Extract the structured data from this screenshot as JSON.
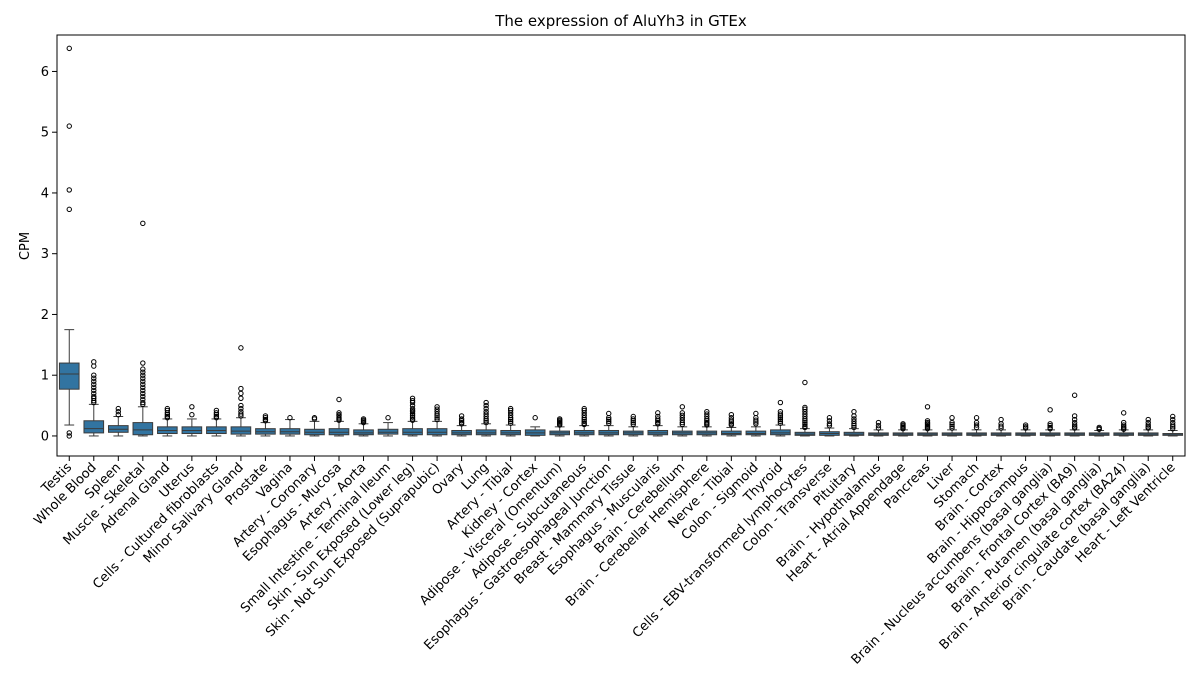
{
  "chart_data": {
    "type": "box",
    "title": "The expression of AluYh3 in GTEx",
    "xlabel": "",
    "ylabel": "CPM",
    "ylim": [
      -0.33,
      6.6
    ],
    "yticks": [
      0,
      1,
      2,
      3,
      4,
      5,
      6
    ],
    "grid": false,
    "box_color": "#3274a1",
    "categories": [
      "Testis",
      "Whole Blood",
      "Spleen",
      "Muscle - Skeletal",
      "Adrenal Gland",
      "Uterus",
      "Cells - Cultured fibroblasts",
      "Minor Salivary Gland",
      "Prostate",
      "Vagina",
      "Artery - Coronary",
      "Esophagus - Mucosa",
      "Artery - Aorta",
      "Small Intestine - Terminal Ileum",
      "Skin - Sun Exposed (Lower leg)",
      "Skin - Not Sun Exposed (Suprapubic)",
      "Ovary",
      "Lung",
      "Artery - Tibial",
      "Kidney - Cortex",
      "Adipose - Visceral (Omentum)",
      "Adipose - Subcutaneous",
      "Esophagus - Gastroesophageal Junction",
      "Breast - Mammary Tissue",
      "Esophagus - Muscularis",
      "Brain - Cerebellum",
      "Brain - Cerebellar Hemisphere",
      "Nerve - Tibial",
      "Colon - Sigmoid",
      "Thyroid",
      "Cells - EBV-transformed lymphocytes",
      "Colon - Transverse",
      "Pituitary",
      "Brain - Hypothalamus",
      "Heart - Atrial Appendage",
      "Pancreas",
      "Liver",
      "Stomach",
      "Brain - Cortex",
      "Brain - Hippocampus",
      "Brain - Nucleus accumbens (basal ganglia)",
      "Brain - Frontal Cortex (BA9)",
      "Brain - Putamen (basal ganglia)",
      "Brain - Anterior cingulate cortex (BA24)",
      "Brain - Caudate (basal ganglia)",
      "Heart - Left Ventricle"
    ],
    "boxes": [
      {
        "q1": 0.77,
        "median": 1.02,
        "q3": 1.2,
        "whisker_low": 0.18,
        "whisker_high": 1.75,
        "outliers": [
          6.38,
          5.1,
          4.05,
          3.73,
          0.05,
          0.0
        ]
      },
      {
        "q1": 0.05,
        "median": 0.12,
        "q3": 0.25,
        "whisker_low": 0.0,
        "whisker_high": 0.52,
        "outliers": [
          1.22,
          1.15,
          1.0,
          0.95,
          0.9,
          0.85,
          0.8,
          0.75,
          0.7,
          0.65,
          0.62,
          0.58,
          0.55
        ]
      },
      {
        "q1": 0.06,
        "median": 0.11,
        "q3": 0.17,
        "whisker_low": 0.0,
        "whisker_high": 0.32,
        "outliers": [
          0.45,
          0.4,
          0.35
        ]
      },
      {
        "q1": 0.02,
        "median": 0.1,
        "q3": 0.22,
        "whisker_low": 0.0,
        "whisker_high": 0.48,
        "outliers": [
          3.5,
          1.2,
          1.1,
          1.05,
          1.0,
          0.95,
          0.9,
          0.85,
          0.8,
          0.75,
          0.7,
          0.65,
          0.6,
          0.55,
          0.52
        ]
      },
      {
        "q1": 0.04,
        "median": 0.09,
        "q3": 0.15,
        "whisker_low": 0.0,
        "whisker_high": 0.28,
        "outliers": [
          0.45,
          0.42,
          0.38,
          0.35,
          0.32,
          0.3
        ]
      },
      {
        "q1": 0.04,
        "median": 0.09,
        "q3": 0.15,
        "whisker_low": 0.0,
        "whisker_high": 0.28,
        "outliers": [
          0.48,
          0.35
        ]
      },
      {
        "q1": 0.04,
        "median": 0.09,
        "q3": 0.15,
        "whisker_low": 0.0,
        "whisker_high": 0.28,
        "outliers": [
          0.42,
          0.38,
          0.35,
          0.32,
          0.3
        ]
      },
      {
        "q1": 0.03,
        "median": 0.08,
        "q3": 0.15,
        "whisker_low": 0.0,
        "whisker_high": 0.3,
        "outliers": [
          1.45,
          0.78,
          0.7,
          0.62,
          0.5,
          0.45,
          0.4,
          0.36,
          0.33
        ]
      },
      {
        "q1": 0.03,
        "median": 0.07,
        "q3": 0.12,
        "whisker_low": 0.0,
        "whisker_high": 0.22,
        "outliers": [
          0.33,
          0.3,
          0.27,
          0.25
        ]
      },
      {
        "q1": 0.03,
        "median": 0.07,
        "q3": 0.12,
        "whisker_low": 0.0,
        "whisker_high": 0.27,
        "outliers": [
          0.3
        ]
      },
      {
        "q1": 0.02,
        "median": 0.06,
        "q3": 0.11,
        "whisker_low": 0.0,
        "whisker_high": 0.24,
        "outliers": [
          0.3,
          0.28
        ]
      },
      {
        "q1": 0.02,
        "median": 0.06,
        "q3": 0.12,
        "whisker_low": 0.0,
        "whisker_high": 0.24,
        "outliers": [
          0.6,
          0.38,
          0.35,
          0.33,
          0.3,
          0.28,
          0.26
        ]
      },
      {
        "q1": 0.02,
        "median": 0.05,
        "q3": 0.1,
        "whisker_low": 0.0,
        "whisker_high": 0.2,
        "outliers": [
          0.28,
          0.26,
          0.24,
          0.22
        ]
      },
      {
        "q1": 0.03,
        "median": 0.06,
        "q3": 0.11,
        "whisker_low": 0.0,
        "whisker_high": 0.22,
        "outliers": [
          0.3
        ]
      },
      {
        "q1": 0.02,
        "median": 0.06,
        "q3": 0.12,
        "whisker_low": 0.0,
        "whisker_high": 0.24,
        "outliers": [
          0.62,
          0.58,
          0.55,
          0.5,
          0.45,
          0.42,
          0.4,
          0.37,
          0.34,
          0.31,
          0.28,
          0.26
        ]
      },
      {
        "q1": 0.02,
        "median": 0.06,
        "q3": 0.12,
        "whisker_low": 0.0,
        "whisker_high": 0.24,
        "outliers": [
          0.48,
          0.44,
          0.4,
          0.36,
          0.33,
          0.3,
          0.27
        ]
      },
      {
        "q1": 0.02,
        "median": 0.05,
        "q3": 0.09,
        "whisker_low": 0.0,
        "whisker_high": 0.17,
        "outliers": [
          0.33,
          0.28,
          0.25,
          0.22,
          0.2
        ]
      },
      {
        "q1": 0.02,
        "median": 0.05,
        "q3": 0.1,
        "whisker_low": 0.0,
        "whisker_high": 0.2,
        "outliers": [
          0.55,
          0.5,
          0.45,
          0.4,
          0.36,
          0.32,
          0.28,
          0.25,
          0.22
        ]
      },
      {
        "q1": 0.02,
        "median": 0.05,
        "q3": 0.09,
        "whisker_low": 0.0,
        "whisker_high": 0.18,
        "outliers": [
          0.45,
          0.42,
          0.38,
          0.34,
          0.3,
          0.27,
          0.24,
          0.21
        ]
      },
      {
        "q1": 0.01,
        "median": 0.05,
        "q3": 0.1,
        "whisker_low": 0.0,
        "whisker_high": 0.15,
        "outliers": [
          0.3
        ]
      },
      {
        "q1": 0.02,
        "median": 0.05,
        "q3": 0.08,
        "whisker_low": 0.0,
        "whisker_high": 0.15,
        "outliers": [
          0.28,
          0.26,
          0.24,
          0.22,
          0.2,
          0.18
        ]
      },
      {
        "q1": 0.02,
        "median": 0.05,
        "q3": 0.09,
        "whisker_low": 0.0,
        "whisker_high": 0.17,
        "outliers": [
          0.45,
          0.42,
          0.38,
          0.34,
          0.3,
          0.27,
          0.24,
          0.21,
          0.19
        ]
      },
      {
        "q1": 0.02,
        "median": 0.05,
        "q3": 0.09,
        "whisker_low": 0.0,
        "whisker_high": 0.17,
        "outliers": [
          0.37,
          0.3,
          0.27,
          0.24,
          0.21
        ]
      },
      {
        "q1": 0.02,
        "median": 0.05,
        "q3": 0.08,
        "whisker_low": 0.0,
        "whisker_high": 0.15,
        "outliers": [
          0.32,
          0.28,
          0.25,
          0.22,
          0.19
        ]
      },
      {
        "q1": 0.02,
        "median": 0.05,
        "q3": 0.09,
        "whisker_low": 0.0,
        "whisker_high": 0.17,
        "outliers": [
          0.38,
          0.32,
          0.28,
          0.25,
          0.22,
          0.2
        ]
      },
      {
        "q1": 0.02,
        "median": 0.05,
        "q3": 0.08,
        "whisker_low": 0.0,
        "whisker_high": 0.15,
        "outliers": [
          0.48,
          0.38,
          0.34,
          0.3,
          0.26,
          0.22,
          0.19
        ]
      },
      {
        "q1": 0.02,
        "median": 0.05,
        "q3": 0.08,
        "whisker_low": 0.0,
        "whisker_high": 0.15,
        "outliers": [
          0.4,
          0.36,
          0.32,
          0.28,
          0.25,
          0.22,
          0.2,
          0.18
        ]
      },
      {
        "q1": 0.02,
        "median": 0.04,
        "q3": 0.08,
        "whisker_low": 0.0,
        "whisker_high": 0.14,
        "outliers": [
          0.35,
          0.3,
          0.26,
          0.23,
          0.2,
          0.18
        ]
      },
      {
        "q1": 0.02,
        "median": 0.04,
        "q3": 0.08,
        "whisker_low": 0.0,
        "whisker_high": 0.15,
        "outliers": [
          0.37,
          0.3,
          0.26,
          0.23,
          0.2
        ]
      },
      {
        "q1": 0.02,
        "median": 0.05,
        "q3": 0.1,
        "whisker_low": 0.0,
        "whisker_high": 0.18,
        "outliers": [
          0.55,
          0.4,
          0.36,
          0.33,
          0.3,
          0.27,
          0.24,
          0.21
        ]
      },
      {
        "q1": 0.01,
        "median": 0.03,
        "q3": 0.06,
        "whisker_low": 0.0,
        "whisker_high": 0.12,
        "outliers": [
          0.88,
          0.47,
          0.44,
          0.4,
          0.36,
          0.32,
          0.28,
          0.25,
          0.22,
          0.19,
          0.16,
          0.14
        ]
      },
      {
        "q1": 0.01,
        "median": 0.04,
        "q3": 0.07,
        "whisker_low": 0.0,
        "whisker_high": 0.13,
        "outliers": [
          0.3,
          0.25,
          0.2,
          0.17
        ]
      },
      {
        "q1": 0.01,
        "median": 0.03,
        "q3": 0.06,
        "whisker_low": 0.0,
        "whisker_high": 0.12,
        "outliers": [
          0.4,
          0.33,
          0.28,
          0.24,
          0.2,
          0.17,
          0.14
        ]
      },
      {
        "q1": 0.01,
        "median": 0.03,
        "q3": 0.05,
        "whisker_low": 0.0,
        "whisker_high": 0.1,
        "outliers": [
          0.22,
          0.17,
          0.13
        ]
      },
      {
        "q1": 0.01,
        "median": 0.03,
        "q3": 0.05,
        "whisker_low": 0.0,
        "whisker_high": 0.1,
        "outliers": [
          0.2,
          0.18,
          0.16,
          0.14,
          0.12
        ]
      },
      {
        "q1": 0.01,
        "median": 0.03,
        "q3": 0.05,
        "whisker_low": 0.0,
        "whisker_high": 0.1,
        "outliers": [
          0.48,
          0.25,
          0.22,
          0.2,
          0.18,
          0.16,
          0.14,
          0.12
        ]
      },
      {
        "q1": 0.01,
        "median": 0.03,
        "q3": 0.05,
        "whisker_low": 0.0,
        "whisker_high": 0.1,
        "outliers": [
          0.3,
          0.22,
          0.19,
          0.16,
          0.13
        ]
      },
      {
        "q1": 0.01,
        "median": 0.03,
        "q3": 0.05,
        "whisker_low": 0.0,
        "whisker_high": 0.1,
        "outliers": [
          0.3,
          0.22,
          0.18,
          0.14
        ]
      },
      {
        "q1": 0.01,
        "median": 0.03,
        "q3": 0.05,
        "whisker_low": 0.0,
        "whisker_high": 0.1,
        "outliers": [
          0.27,
          0.2,
          0.16,
          0.13
        ]
      },
      {
        "q1": 0.01,
        "median": 0.03,
        "q3": 0.05,
        "whisker_low": 0.0,
        "whisker_high": 0.1,
        "outliers": [
          0.18,
          0.15,
          0.13
        ]
      },
      {
        "q1": 0.01,
        "median": 0.03,
        "q3": 0.05,
        "whisker_low": 0.0,
        "whisker_high": 0.1,
        "outliers": [
          0.43,
          0.2,
          0.17,
          0.14,
          0.12
        ]
      },
      {
        "q1": 0.01,
        "median": 0.03,
        "q3": 0.05,
        "whisker_low": 0.0,
        "whisker_high": 0.1,
        "outliers": [
          0.67,
          0.33,
          0.27,
          0.22,
          0.18,
          0.15,
          0.13
        ]
      },
      {
        "q1": 0.01,
        "median": 0.03,
        "q3": 0.05,
        "whisker_low": 0.0,
        "whisker_high": 0.09,
        "outliers": [
          0.14,
          0.12,
          0.11
        ]
      },
      {
        "q1": 0.01,
        "median": 0.03,
        "q3": 0.05,
        "whisker_low": 0.0,
        "whisker_high": 0.1,
        "outliers": [
          0.38,
          0.22,
          0.18,
          0.15,
          0.13,
          0.11
        ]
      },
      {
        "q1": 0.01,
        "median": 0.03,
        "q3": 0.05,
        "whisker_low": 0.0,
        "whisker_high": 0.1,
        "outliers": [
          0.27,
          0.22,
          0.18,
          0.15,
          0.13
        ]
      },
      {
        "q1": 0.01,
        "median": 0.02,
        "q3": 0.04,
        "whisker_low": 0.0,
        "whisker_high": 0.09,
        "outliers": [
          0.32,
          0.27,
          0.22,
          0.18,
          0.15,
          0.12
        ]
      }
    ]
  }
}
